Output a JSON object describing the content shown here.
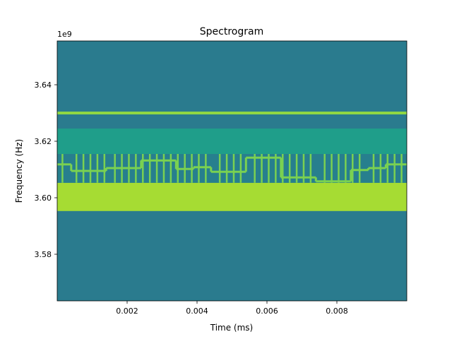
{
  "chart_data": {
    "type": "heatmap",
    "title": "Spectrogram",
    "xlabel": "Time (ms)",
    "ylabel": "Frequency (Hz)",
    "y_offset_label": "1e9",
    "xlim": [
      0.0,
      0.01
    ],
    "ylim": [
      3.5635,
      3.6555
    ],
    "x_ticks": [
      {
        "value": 0.002,
        "label": "0.002"
      },
      {
        "value": 0.004,
        "label": "0.004"
      },
      {
        "value": 0.006,
        "label": "0.006"
      },
      {
        "value": 0.008,
        "label": "0.008"
      }
    ],
    "y_ticks": [
      {
        "value": 3.58,
        "label": "3.58"
      },
      {
        "value": 3.6,
        "label": "3.60"
      },
      {
        "value": 3.62,
        "label": "3.62"
      },
      {
        "value": 3.64,
        "label": "3.64"
      }
    ],
    "background_color": "#2a7b8e",
    "bands": [
      {
        "name": "strong-band",
        "f_low": 3.5953,
        "f_high": 3.6053,
        "color": "#a6dc33"
      },
      {
        "name": "upper-band",
        "f_low": 3.6155,
        "f_high": 3.6245,
        "color": "#1f9e8a"
      },
      {
        "name": "hop-region",
        "f_low": 3.6053,
        "f_high": 3.6155,
        "color": "#277f8e"
      },
      {
        "name": "steady-tone",
        "f_low": 3.6295,
        "f_high": 3.6305,
        "color": "#8fd744"
      }
    ],
    "hop_line_color": "#7ad151",
    "hops": [
      {
        "t_start": 0.0,
        "t_end": 0.0004,
        "freq": 3.6118
      },
      {
        "t_start": 0.0004,
        "t_end": 0.0014,
        "freq": 3.6095
      },
      {
        "t_start": 0.0014,
        "t_end": 0.0024,
        "freq": 3.6105
      },
      {
        "t_start": 0.0024,
        "t_end": 0.0034,
        "freq": 3.6132
      },
      {
        "t_start": 0.0034,
        "t_end": 0.0039,
        "freq": 3.6102
      },
      {
        "t_start": 0.0039,
        "t_end": 0.0044,
        "freq": 3.6108
      },
      {
        "t_start": 0.0044,
        "t_end": 0.0054,
        "freq": 3.6092
      },
      {
        "t_start": 0.0054,
        "t_end": 0.0064,
        "freq": 3.6142
      },
      {
        "t_start": 0.0064,
        "t_end": 0.0074,
        "freq": 3.6072
      },
      {
        "t_start": 0.0074,
        "t_end": 0.0084,
        "freq": 3.6058
      },
      {
        "t_start": 0.0084,
        "t_end": 0.0089,
        "freq": 3.6098
      },
      {
        "t_start": 0.0089,
        "t_end": 0.0094,
        "freq": 3.6105
      },
      {
        "t_start": 0.0094,
        "t_end": 0.01,
        "freq": 3.6118
      }
    ],
    "spur_times": [
      0.00015,
      0.00055,
      0.00075,
      0.00095,
      0.00115,
      0.00135,
      0.00165,
      0.00185,
      0.00205,
      0.00225,
      0.00245,
      0.00265,
      0.00285,
      0.00305,
      0.00325,
      0.00345,
      0.00365,
      0.00385,
      0.00405,
      0.00425,
      0.00465,
      0.00485,
      0.00505,
      0.00525,
      0.00565,
      0.00585,
      0.00605,
      0.00625,
      0.00645,
      0.00665,
      0.00685,
      0.00705,
      0.00725,
      0.00765,
      0.00785,
      0.00805,
      0.00825,
      0.00845,
      0.00865,
      0.00905,
      0.00925,
      0.00945,
      0.00965,
      0.00985
    ],
    "spur_f_low": 3.6053,
    "spur_f_high": 3.6155
  }
}
